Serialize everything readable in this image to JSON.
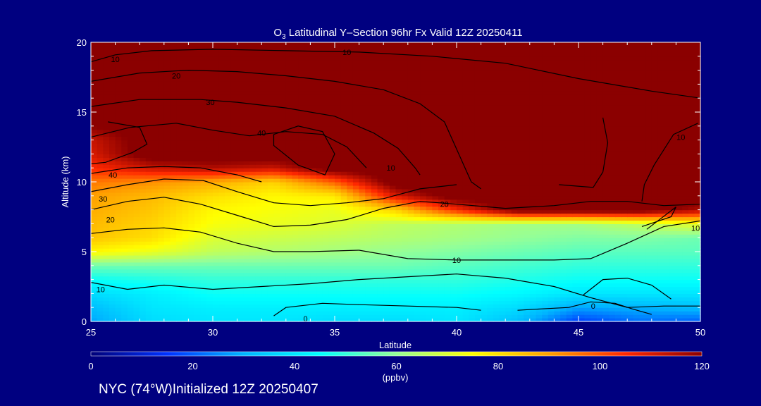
{
  "chart_data": {
    "type": "heatmap",
    "title_prefix": "O",
    "title_sub": "3",
    "title_rest": " Latitudinal Y–Section 96hr  Fx Valid 12Z 20250411",
    "xlabel": "Latitude",
    "ylabel": "Altitude (km)",
    "xlim": [
      25,
      50
    ],
    "ylim": [
      0,
      20
    ],
    "x_ticks": [
      "25",
      "30",
      "35",
      "40",
      "45",
      "50"
    ],
    "y_ticks": [
      "0",
      "5",
      "10",
      "15",
      "20"
    ],
    "colorbar": {
      "range": [
        0,
        120
      ],
      "ticks": [
        "0",
        "20",
        "40",
        "60",
        "80",
        "100",
        "120"
      ],
      "unit": "(ppbv)",
      "colors": [
        "#000078",
        "#0032ff",
        "#00b4ff",
        "#00ffff",
        "#96ff96",
        "#ffff00",
        "#ffa000",
        "#ff2800",
        "#8b0000"
      ]
    },
    "ozone_field": {
      "lat": [
        25,
        27.5,
        30,
        32.5,
        35,
        37.5,
        40,
        42.5,
        45,
        47.5,
        50
      ],
      "alt": [
        0,
        1,
        2,
        3,
        4,
        5,
        6,
        7,
        8,
        9,
        10,
        11,
        12,
        13,
        14,
        15,
        16,
        17,
        18,
        19,
        20
      ],
      "ppbv": [
        [
          28,
          38,
          40,
          40,
          38,
          38,
          40,
          32,
          16,
          22,
          20
        ],
        [
          32,
          40,
          42,
          42,
          42,
          42,
          42,
          38,
          28,
          30,
          32
        ],
        [
          38,
          42,
          46,
          46,
          46,
          46,
          46,
          44,
          40,
          40,
          40
        ],
        [
          46,
          48,
          50,
          50,
          50,
          50,
          50,
          48,
          46,
          46,
          46
        ],
        [
          56,
          56,
          56,
          56,
          56,
          56,
          54,
          52,
          50,
          50,
          50
        ],
        [
          76,
          72,
          66,
          64,
          62,
          60,
          58,
          56,
          54,
          54,
          54
        ],
        [
          84,
          80,
          70,
          68,
          66,
          64,
          62,
          60,
          58,
          58,
          56
        ],
        [
          86,
          82,
          74,
          72,
          70,
          66,
          64,
          62,
          62,
          66,
          72
        ],
        [
          88,
          84,
          76,
          74,
          72,
          82,
          105,
          125,
          125,
          125,
          115
        ],
        [
          90,
          86,
          80,
          76,
          78,
          110,
          125,
          125,
          125,
          125,
          125
        ],
        [
          95,
          92,
          88,
          82,
          98,
          125,
          125,
          125,
          125,
          125,
          125
        ],
        [
          105,
          112,
          115,
          112,
          125,
          125,
          125,
          125,
          125,
          125,
          125
        ],
        [
          110,
          125,
          125,
          125,
          125,
          125,
          125,
          125,
          125,
          125,
          125
        ],
        [
          112,
          125,
          125,
          125,
          125,
          125,
          125,
          125,
          125,
          125,
          125
        ],
        [
          120,
          125,
          125,
          125,
          125,
          125,
          125,
          125,
          125,
          125,
          125
        ],
        [
          125,
          125,
          125,
          125,
          125,
          125,
          125,
          125,
          125,
          125,
          125
        ],
        [
          125,
          125,
          125,
          125,
          125,
          125,
          125,
          125,
          125,
          125,
          125
        ],
        [
          125,
          125,
          125,
          125,
          125,
          125,
          125,
          125,
          125,
          125,
          125
        ],
        [
          125,
          125,
          125,
          125,
          125,
          125,
          125,
          125,
          125,
          125,
          125
        ],
        [
          125,
          125,
          125,
          125,
          125,
          125,
          125,
          125,
          125,
          125,
          125
        ],
        [
          125,
          125,
          125,
          125,
          125,
          125,
          125,
          125,
          125,
          125,
          125
        ]
      ]
    },
    "contour_labels": [
      {
        "text": "10",
        "lat": 35.5,
        "alt": 19.3
      },
      {
        "text": "10",
        "lat": 26.0,
        "alt": 18.8
      },
      {
        "text": "20",
        "lat": 28.5,
        "alt": 17.6
      },
      {
        "text": "30",
        "lat": 29.9,
        "alt": 15.7
      },
      {
        "text": "40",
        "lat": 32.0,
        "alt": 13.5
      },
      {
        "text": "40",
        "lat": 25.9,
        "alt": 10.5
      },
      {
        "text": "30",
        "lat": 25.5,
        "alt": 8.8
      },
      {
        "text": "20",
        "lat": 25.8,
        "alt": 7.3
      },
      {
        "text": "10",
        "lat": 25.4,
        "alt": 2.3
      },
      {
        "text": "10",
        "lat": 40.0,
        "alt": 4.4
      },
      {
        "text": "20",
        "lat": 39.5,
        "alt": 8.4
      },
      {
        "text": "10",
        "lat": 37.3,
        "alt": 11.0
      },
      {
        "text": "10",
        "lat": 49.2,
        "alt": 13.2
      },
      {
        "text": "10",
        "lat": 49.8,
        "alt": 6.7
      },
      {
        "text": "0",
        "lat": 45.6,
        "alt": 1.1
      },
      {
        "text": "0",
        "lat": 33.8,
        "alt": 0.2
      }
    ]
  },
  "footer": {
    "location_info": "NYC (74°W)Initialized 12Z 20250407"
  }
}
